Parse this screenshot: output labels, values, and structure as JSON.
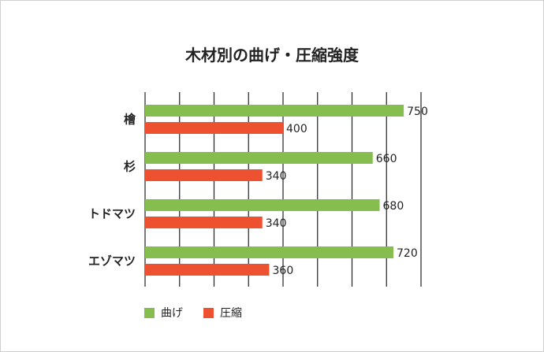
{
  "chart_data": {
    "type": "bar",
    "orientation": "horizontal",
    "title": "木材別の曲げ・圧縮強度",
    "categories": [
      "檜",
      "杉",
      "トドマツ",
      "エゾマツ"
    ],
    "series": [
      {
        "name": "曲げ",
        "color": "#85bd4f",
        "values": [
          750,
          660,
          680,
          720
        ]
      },
      {
        "name": "圧縮",
        "color": "#ee5130",
        "values": [
          400,
          340,
          340,
          360
        ]
      }
    ],
    "xlim": [
      0,
      800
    ],
    "grid": true,
    "legend_position": "bottom-left"
  }
}
